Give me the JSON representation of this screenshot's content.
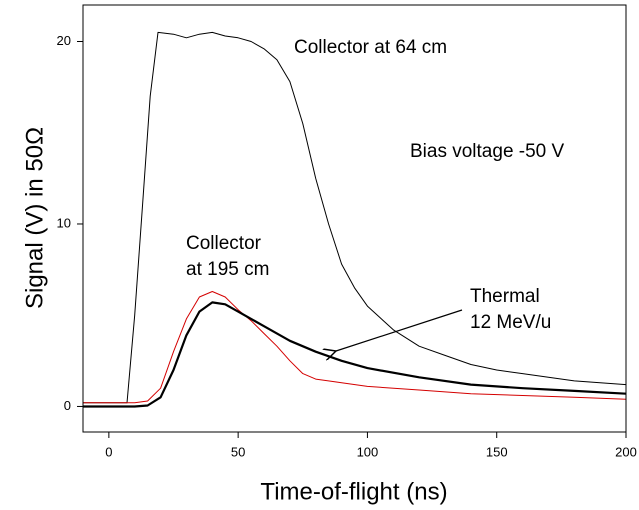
{
  "chart_data": {
    "type": "line",
    "x_label": "Time-of-flight (ns)",
    "y_label": "Signal (V) in 50Ω",
    "xlim": [
      -10,
      200
    ],
    "ylim": [
      -1.4,
      22
    ],
    "xticks": [
      0,
      50,
      100,
      150,
      200
    ],
    "yticks": [
      0,
      10,
      20
    ],
    "series": [
      {
        "color": "#000000",
        "width": 1,
        "x": [
          -10,
          0,
          7,
          10,
          13,
          16,
          19,
          25,
          30,
          35,
          40,
          45,
          50,
          55,
          60,
          65,
          70,
          75,
          80,
          85,
          90,
          95,
          100,
          110,
          120,
          130,
          140,
          150,
          160,
          170,
          180,
          190,
          200
        ],
        "values": [
          0.2,
          0.2,
          0.2,
          5,
          11,
          17,
          20.5,
          20.4,
          20.2,
          20.4,
          20.5,
          20.3,
          20.2,
          20.0,
          19.6,
          19.0,
          17.8,
          15.5,
          12.5,
          10,
          7.8,
          6.5,
          5.5,
          4.2,
          3.3,
          2.8,
          2.3,
          2.0,
          1.8,
          1.6,
          1.4,
          1.3,
          1.2
        ]
      },
      {
        "color": "#d40000",
        "width": 1,
        "x": [
          -10,
          0,
          10,
          15,
          20,
          25,
          30,
          35,
          40,
          45,
          50,
          55,
          60,
          65,
          70,
          75,
          80,
          90,
          100,
          120,
          140,
          160,
          180,
          200
        ],
        "values": [
          0.2,
          0.2,
          0.2,
          0.3,
          1.0,
          3.0,
          4.8,
          6.0,
          6.3,
          6.0,
          5.3,
          4.7,
          4.0,
          3.3,
          2.5,
          1.8,
          1.5,
          1.3,
          1.1,
          0.9,
          0.7,
          0.6,
          0.5,
          0.4
        ]
      },
      {
        "color": "#000000",
        "width": 2.2,
        "x": [
          -10,
          0,
          10,
          15,
          20,
          25,
          30,
          35,
          40,
          45,
          50,
          60,
          70,
          80,
          90,
          100,
          120,
          140,
          160,
          180,
          200
        ],
        "values": [
          0,
          0,
          0,
          0.05,
          0.5,
          2.0,
          3.9,
          5.2,
          5.7,
          5.6,
          5.2,
          4.4,
          3.6,
          3.0,
          2.5,
          2.1,
          1.6,
          1.2,
          1.0,
          0.85,
          0.7
        ]
      }
    ],
    "annotations": [
      [
        "Collector at 64 cm"
      ],
      [
        "Bias voltage -50 V"
      ],
      [
        "Collector",
        "at 195 cm"
      ],
      [
        "Thermal",
        "12 MeV/u"
      ]
    ]
  }
}
